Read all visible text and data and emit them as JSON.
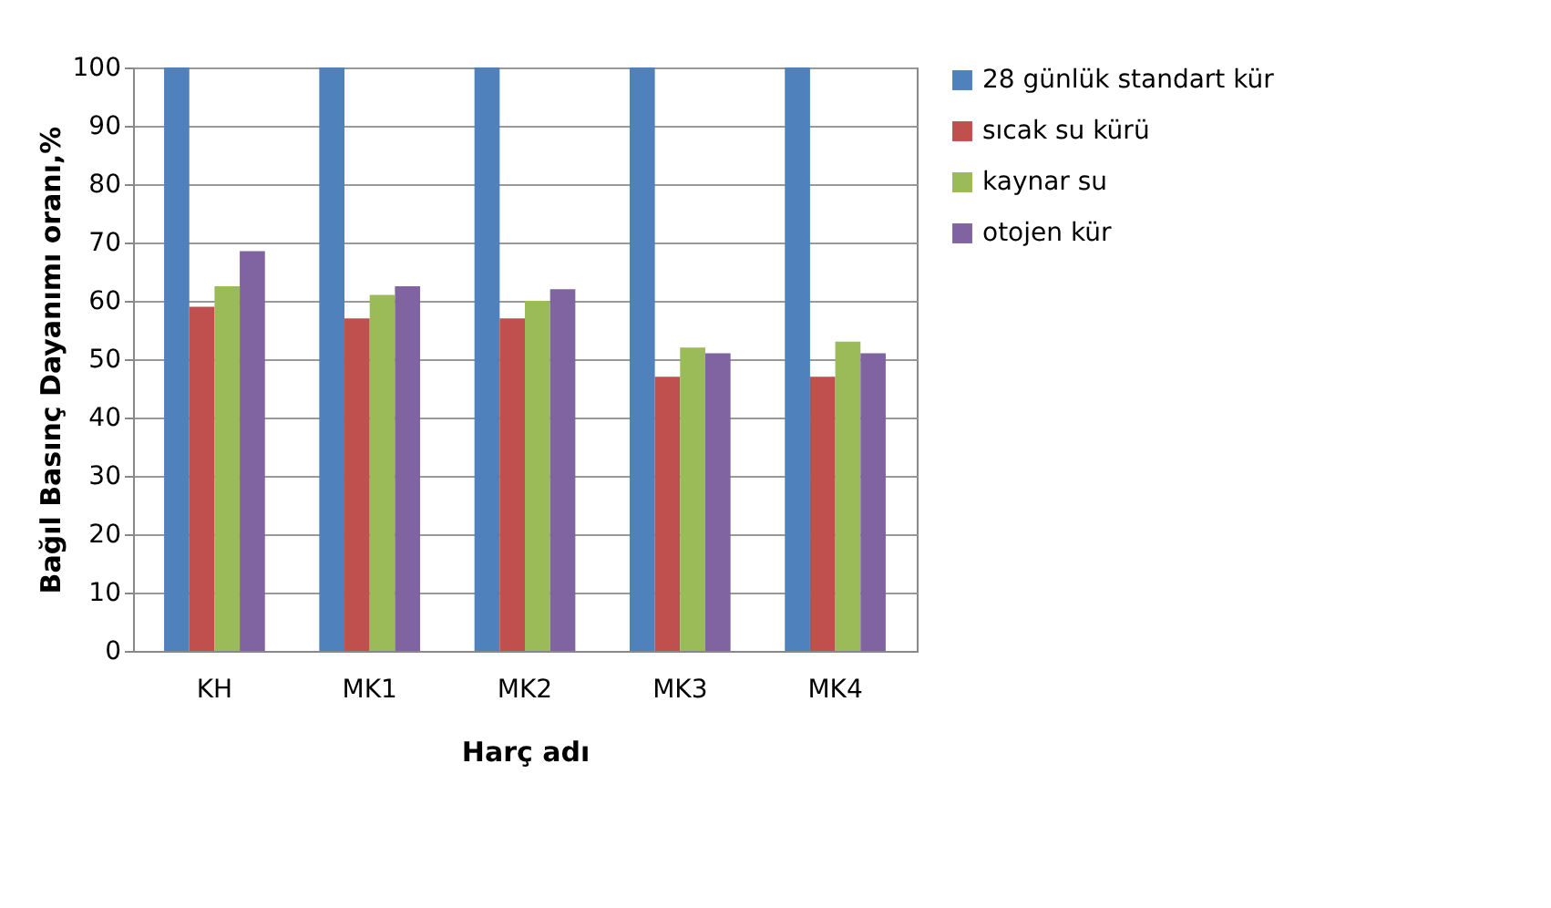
{
  "chart_data": {
    "type": "bar",
    "xlabel": "Harç adı",
    "ylabel": "Bağıl Basınç Dayanımı oranı,%",
    "categories": [
      "KH",
      "MK1",
      "MK2",
      "MK3",
      "MK4"
    ],
    "series": [
      {
        "name": "28 günlük standart kür",
        "color": "#4f81bd",
        "values": [
          100,
          100,
          100,
          100,
          100
        ]
      },
      {
        "name": "sıcak su kürü",
        "color": "#c0504d",
        "values": [
          59,
          57,
          57,
          47,
          47
        ]
      },
      {
        "name": "kaynar su",
        "color": "#9bbb59",
        "values": [
          62.5,
          61,
          60,
          52,
          53
        ]
      },
      {
        "name": "otojen kür",
        "color": "#8064a2",
        "values": [
          68.5,
          62.5,
          62,
          51,
          51
        ]
      }
    ],
    "ylim": [
      0,
      100
    ],
    "yticks": [
      0,
      10,
      20,
      30,
      40,
      50,
      60,
      70,
      80,
      90,
      100
    ],
    "grid": "y",
    "legend": "right"
  }
}
